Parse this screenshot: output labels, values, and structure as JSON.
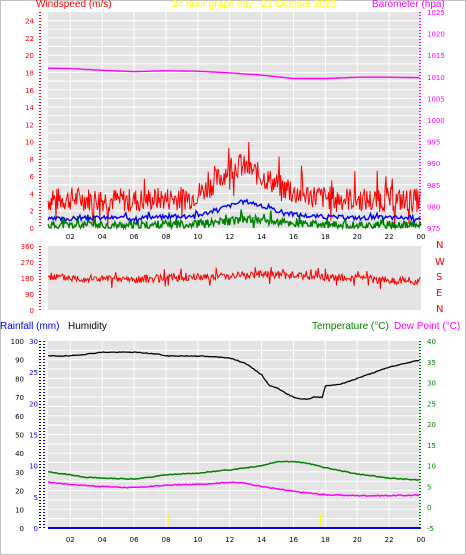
{
  "colors": {
    "windspeed": "#ff0000",
    "gust": "#ff0000",
    "average_wind": "#0000ff",
    "wind_low": "#008000",
    "barometer": "#ff00ff",
    "direction": "#ff0000",
    "rainfall": "#0000ff",
    "humidity": "#000000",
    "temperature": "#008000",
    "dewpoint": "#ff00ff",
    "plot_bg": "#e4e4e4",
    "grid": "#ffffff",
    "title": "#ffff00",
    "axis_frame": "#c0c0c0"
  },
  "header": {
    "windspeed_label": "Windspeed (m/s)",
    "title": "24 hour graph day : 21 October 2025",
    "barometer_label": "Barometer (hpa)"
  },
  "middle": {
    "compass": [
      "N",
      "W",
      "S",
      "E",
      "N"
    ]
  },
  "bottom_header": {
    "rainfall_label": "Rainfall (mm)",
    "humidity_label": "Humidity",
    "temperature_label": "Temperature (°C)",
    "dewpoint_label": "Dew Point (°C)"
  },
  "chart_data": [
    {
      "type": "line",
      "panel": "wind",
      "x_ticks": [
        "02",
        "04",
        "06",
        "08",
        "10",
        "12",
        "14",
        "16",
        "18",
        "20",
        "22",
        "00"
      ],
      "y_left_ticks": [
        "0",
        "2",
        "4",
        "6",
        "8",
        "10",
        "12",
        "14",
        "16",
        "18",
        "20",
        "22",
        "24"
      ],
      "y_right_ticks": [
        "975",
        "980",
        "985",
        "990",
        "995",
        "1000",
        "1005",
        "1010",
        "1015",
        "1020",
        "1025"
      ],
      "y_left_range": [
        0,
        25
      ],
      "y_right_range": [
        975,
        1025
      ],
      "x_range_hours": [
        0.6,
        24.0
      ],
      "grid": true,
      "series": [
        {
          "name": "Windspeed (m/s)",
          "axis": "left",
          "style": "gust",
          "x": [
            0.6,
            2,
            4,
            6,
            8,
            9.5,
            10.5,
            11.5,
            12,
            12.5,
            13,
            13.5,
            14,
            14.5,
            15,
            15.5,
            16,
            17,
            18,
            19,
            20,
            21,
            22,
            23,
            24
          ],
          "y": [
            3.2,
            3.4,
            3.3,
            3.2,
            3.4,
            3.5,
            4.5,
            6.0,
            7.0,
            7.2,
            7.0,
            6.5,
            6.0,
            5.5,
            5.0,
            4.5,
            4.0,
            3.8,
            3.5,
            3.4,
            3.3,
            3.2,
            3.3,
            3.2,
            3.2
          ]
        },
        {
          "name": "average",
          "axis": "left",
          "style": "average",
          "x": [
            0.6,
            2,
            4,
            6,
            8,
            10,
            11,
            12,
            12.5,
            13,
            13.5,
            14,
            15,
            16,
            17,
            18,
            20,
            22,
            24
          ],
          "y": [
            1.0,
            1.1,
            1.2,
            1.2,
            1.3,
            1.5,
            2.0,
            2.6,
            2.9,
            3.1,
            2.9,
            2.5,
            2.0,
            1.6,
            1.4,
            1.3,
            1.2,
            1.2,
            1.2
          ]
        },
        {
          "name": "low",
          "axis": "left",
          "style": "low",
          "x": [
            0.6,
            2,
            4,
            6,
            8,
            10,
            11,
            12,
            13,
            14,
            15,
            16,
            17,
            18,
            20,
            22,
            24
          ],
          "y": [
            0.3,
            0.3,
            0.3,
            0.3,
            0.4,
            0.5,
            0.6,
            0.8,
            1.0,
            0.9,
            0.7,
            0.5,
            0.4,
            0.3,
            0.3,
            0.3,
            0.3
          ]
        },
        {
          "name": "Barometer (hpa)",
          "axis": "right",
          "style": "baro",
          "x": [
            0.6,
            2,
            4,
            6,
            8,
            10,
            12,
            14,
            16,
            18,
            20,
            22,
            24
          ],
          "y": [
            1012.0,
            1011.9,
            1011.5,
            1011.2,
            1011.4,
            1011.3,
            1010.9,
            1010.4,
            1009.6,
            1009.6,
            1009.9,
            1009.9,
            1009.8
          ]
        }
      ]
    },
    {
      "type": "line",
      "panel": "direction",
      "x_ticks": [
        "02",
        "04",
        "06",
        "08",
        "10",
        "12",
        "14",
        "16",
        "18",
        "20",
        "22",
        "00"
      ],
      "y_ticks": [
        "0",
        "90",
        "180",
        "270",
        "360"
      ],
      "y_range": [
        0,
        360
      ],
      "x_range_hours": [
        0.6,
        24.0
      ],
      "series": [
        {
          "name": "Wind direction",
          "x": [
            0.6,
            2,
            4,
            6,
            8,
            10,
            12,
            14,
            16,
            18,
            20,
            22,
            24
          ],
          "y": [
            190,
            180,
            175,
            170,
            180,
            185,
            195,
            200,
            195,
            185,
            180,
            165,
            165
          ]
        }
      ]
    },
    {
      "type": "line",
      "panel": "temperature_humidity",
      "x_ticks": [
        "02",
        "04",
        "06",
        "08",
        "10",
        "12",
        "14",
        "16",
        "18",
        "20",
        "22",
        "00"
      ],
      "y_left_ticks": [
        "0",
        "10",
        "20",
        "30",
        "40",
        "50",
        "60",
        "70",
        "80",
        "90",
        "100"
      ],
      "y_rain_ticks": [
        "0",
        "5",
        "10",
        "15",
        "20",
        "25",
        "30"
      ],
      "y_right_ticks": [
        "-5",
        "0",
        "5",
        "10",
        "15",
        "20",
        "25",
        "30",
        "35",
        "40"
      ],
      "y_left_range": [
        0,
        100
      ],
      "y_rain_range": [
        0,
        30
      ],
      "y_right_range": [
        -5,
        40
      ],
      "x_range_hours": [
        0.6,
        24.0
      ],
      "grid": true,
      "series": [
        {
          "name": "Humidity",
          "axis": "left",
          "x": [
            0.6,
            2,
            3,
            4,
            6,
            7.5,
            8,
            10,
            12,
            13,
            14,
            14.5,
            15,
            15.5,
            16,
            16.5,
            17,
            17.3,
            17.8,
            18,
            19,
            20,
            21,
            22,
            23,
            24
          ],
          "y": [
            92,
            92,
            93,
            94,
            94,
            93,
            92,
            92,
            91,
            88,
            82,
            76,
            75,
            72,
            70,
            69,
            69,
            70,
            70,
            76,
            77,
            80,
            83,
            86,
            88,
            90
          ]
        },
        {
          "name": "Temperature (°C)",
          "axis": "right",
          "x": [
            0.6,
            2,
            3,
            4,
            6,
            7,
            8,
            10,
            12,
            14,
            15,
            16,
            17,
            18,
            20,
            22,
            24
          ],
          "y": [
            8.5,
            7.8,
            7.2,
            7.0,
            6.8,
            7.2,
            7.8,
            8.2,
            9.0,
            10.0,
            11.0,
            11.0,
            10.5,
            9.5,
            8.0,
            7.0,
            6.5
          ]
        },
        {
          "name": "Dew Point (°C)",
          "axis": "right",
          "x": [
            0.6,
            2,
            4,
            6,
            8,
            10,
            12,
            13,
            14,
            16,
            18,
            20,
            22,
            24
          ],
          "y": [
            6.0,
            5.5,
            5.0,
            4.7,
            5.3,
            5.5,
            6.0,
            5.8,
            5.0,
            3.8,
            3.0,
            2.8,
            2.8,
            2.9
          ]
        },
        {
          "name": "Rainfall (mm)",
          "axis": "rain",
          "x": [
            0.6,
            24.0
          ],
          "y": [
            0,
            0
          ]
        }
      ]
    }
  ]
}
